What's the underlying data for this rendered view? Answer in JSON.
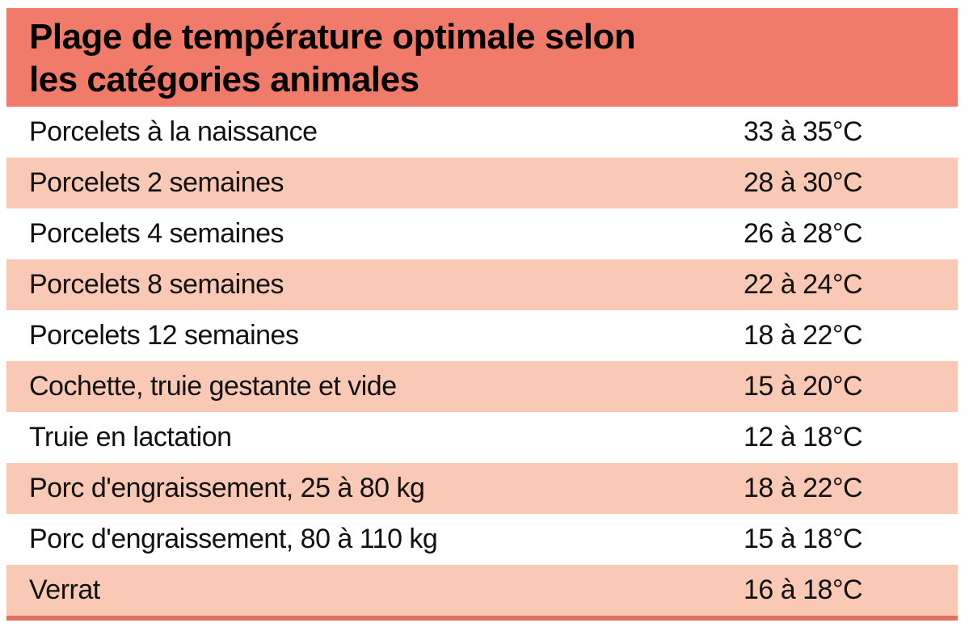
{
  "title": {
    "line1": "Plage de température optimale selon",
    "line2": "les catégories animales"
  },
  "colors": {
    "header_bg": "#F07B6A",
    "stripe_bg": "#F9C9B5",
    "bottom_bar": "#DD7361",
    "text": "#111111"
  },
  "rows": [
    {
      "category": "Porcelets à la naissance",
      "temperature": "33 à 35°C"
    },
    {
      "category": "Porcelets 2 semaines",
      "temperature": "28 à 30°C"
    },
    {
      "category": "Porcelets 4 semaines",
      "temperature": "26 à 28°C"
    },
    {
      "category": "Porcelets 8 semaines",
      "temperature": "22 à 24°C"
    },
    {
      "category": "Porcelets 12 semaines",
      "temperature": "18 à 22°C"
    },
    {
      "category": "Cochette, truie gestante et vide",
      "temperature": "15 à 20°C"
    },
    {
      "category": "Truie en lactation",
      "temperature": "12 à 18°C"
    },
    {
      "category": "Porc d'engraissement, 25 à 80 kg",
      "temperature": "18 à 22°C"
    },
    {
      "category": "Porc d'engraissement, 80 à 110 kg",
      "temperature": "15 à 18°C"
    },
    {
      "category": "Verrat",
      "temperature": "16 à 18°C"
    }
  ]
}
